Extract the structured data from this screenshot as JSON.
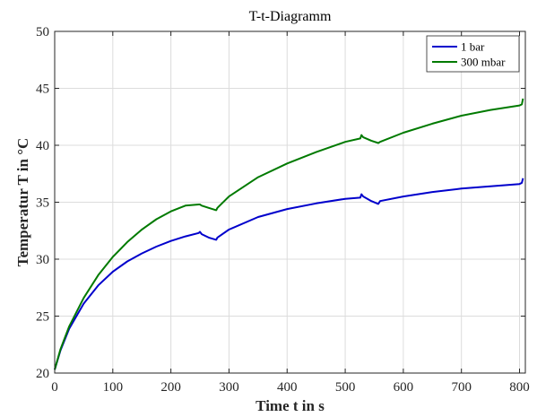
{
  "chart_data": {
    "type": "line",
    "title": "T-t-Diagramm",
    "xlabel": "Time t in s",
    "ylabel": "Temperatur T in °C",
    "xlim": [
      0,
      810
    ],
    "ylim": [
      20,
      50
    ],
    "xticks": [
      0,
      100,
      200,
      300,
      400,
      500,
      600,
      700,
      800
    ],
    "yticks": [
      20,
      25,
      30,
      35,
      40,
      45,
      50
    ],
    "grid": true,
    "legend_position": "top-right",
    "series": [
      {
        "name": "1 bar",
        "color": "#0000cc",
        "x": [
          0,
          10,
          25,
          50,
          75,
          100,
          125,
          150,
          175,
          200,
          225,
          248,
          250,
          253,
          265,
          278,
          280,
          300,
          350,
          400,
          450,
          500,
          526,
          528,
          531,
          545,
          557,
          560,
          600,
          650,
          700,
          750,
          800,
          804,
          806
        ],
        "y": [
          20.3,
          22.0,
          23.9,
          26.1,
          27.7,
          28.9,
          29.8,
          30.5,
          31.1,
          31.6,
          32.0,
          32.3,
          32.4,
          32.2,
          31.9,
          31.7,
          31.9,
          32.6,
          33.7,
          34.4,
          34.9,
          35.3,
          35.4,
          35.7,
          35.5,
          35.1,
          34.85,
          35.1,
          35.5,
          35.9,
          36.2,
          36.4,
          36.6,
          36.7,
          37.1
        ]
      },
      {
        "name": "300 mbar",
        "color": "#007a00",
        "x": [
          0,
          10,
          25,
          50,
          75,
          100,
          125,
          150,
          175,
          200,
          225,
          248,
          250,
          253,
          265,
          278,
          280,
          300,
          350,
          400,
          450,
          500,
          526,
          528,
          531,
          545,
          557,
          560,
          600,
          650,
          700,
          750,
          800,
          804,
          806
        ],
        "y": [
          20.3,
          22.1,
          24.1,
          26.6,
          28.6,
          30.2,
          31.5,
          32.6,
          33.5,
          34.2,
          34.7,
          34.8,
          34.8,
          34.7,
          34.5,
          34.3,
          34.5,
          35.5,
          37.2,
          38.4,
          39.4,
          40.3,
          40.6,
          40.9,
          40.7,
          40.4,
          40.2,
          40.3,
          41.1,
          41.9,
          42.6,
          43.1,
          43.5,
          43.6,
          44.1
        ]
      }
    ]
  }
}
